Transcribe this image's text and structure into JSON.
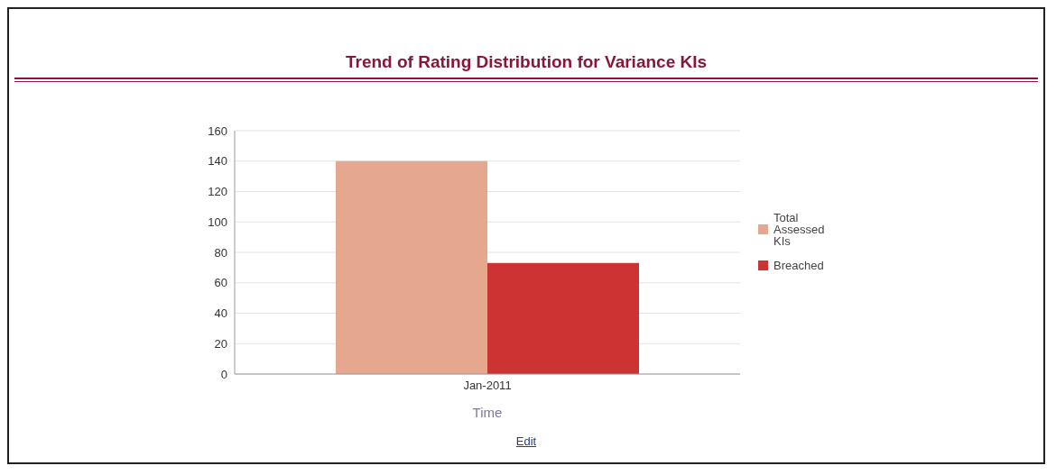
{
  "chart_data": {
    "type": "bar",
    "title": "Trend of Rating Distribution for Variance KIs",
    "xlabel": "Time",
    "categories": [
      "Jan-2011"
    ],
    "series": [
      {
        "name": "Total Assessed KIs",
        "color": "#e5a88e",
        "values": [
          140
        ]
      },
      {
        "name": "Breached",
        "color": "#cc3333",
        "values": [
          73
        ]
      }
    ],
    "ylim": [
      0,
      160
    ],
    "yticks": [
      0,
      20,
      40,
      60,
      80,
      100,
      120,
      140,
      160
    ],
    "grid": "y",
    "legend": "right",
    "annotations": [
      "Edit"
    ]
  }
}
